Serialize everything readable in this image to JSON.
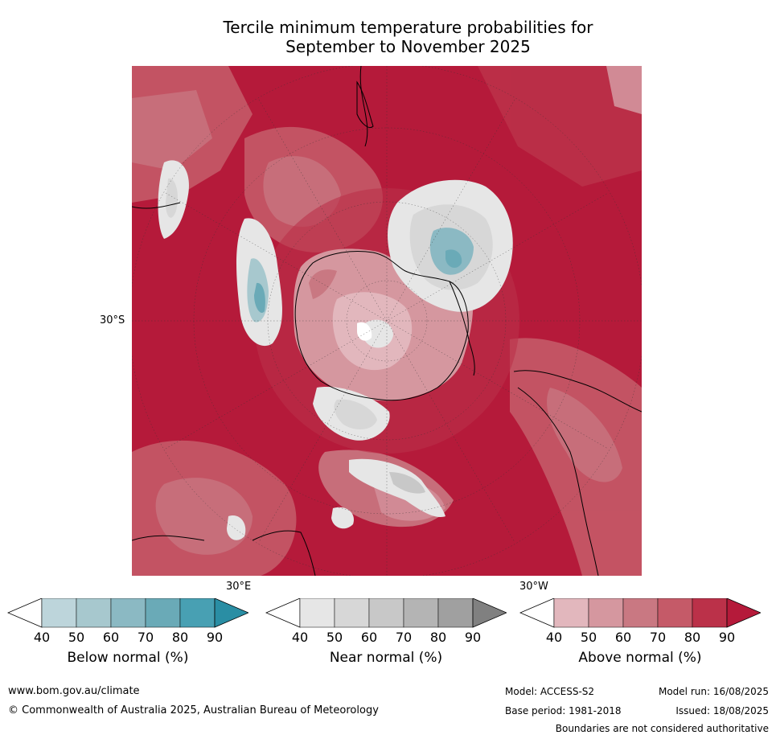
{
  "title": {
    "line1": "Tercile minimum temperature probabilities for",
    "line2": "September to November 2025"
  },
  "map": {
    "projection": "south-polar-stereographic",
    "grid_labels": {
      "lat_30s": "30°S",
      "lon_30e": "30°E",
      "lon_30w": "30°W"
    },
    "dominant_category": "Above normal",
    "colors": {
      "ocean_dominant": "#b51a3a",
      "land_outline": "#000000"
    }
  },
  "legends": [
    {
      "label": "Below normal (%)",
      "ticks": [
        "40",
        "50",
        "60",
        "70",
        "80",
        "90"
      ],
      "colors": [
        "#ffffff",
        "#bdd5db",
        "#a7c8ce",
        "#8bb9c3",
        "#6aaab7",
        "#48a0b3",
        "#2a8ea4"
      ]
    },
    {
      "label": "Near normal (%)",
      "ticks": [
        "40",
        "50",
        "60",
        "70",
        "80",
        "90"
      ],
      "colors": [
        "#ffffff",
        "#e6e6e6",
        "#d7d7d7",
        "#c8c8c8",
        "#b4b4b4",
        "#a0a0a0",
        "#808080"
      ]
    },
    {
      "label": "Above normal (%)",
      "ticks": [
        "40",
        "50",
        "60",
        "70",
        "80",
        "90"
      ],
      "colors": [
        "#ffffff",
        "#e2b7bd",
        "#d5979f",
        "#c97882",
        "#c55a68",
        "#bb3149",
        "#b51a3a"
      ]
    }
  ],
  "footer": {
    "website": "www.bom.gov.au/climate",
    "copyright": "© Commonwealth of Australia 2025, Australian Bureau of Meteorology",
    "model": "Model: ACCESS-S2",
    "base_period": "Base period: 1981-2018",
    "model_run": "Model run: 16/08/2025",
    "issued": "Issued: 18/08/2025",
    "disclaimer": "Boundaries are not considered authoritative"
  }
}
